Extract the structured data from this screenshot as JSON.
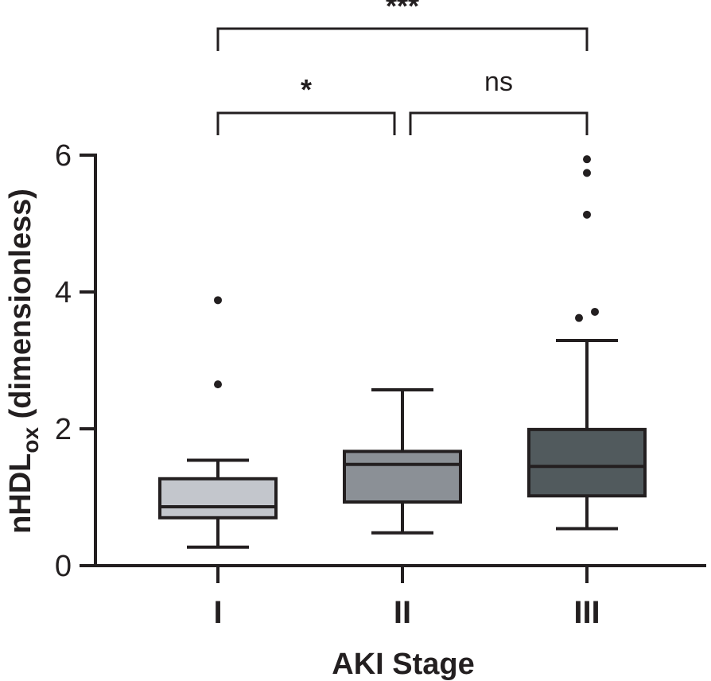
{
  "chart_data": {
    "type": "box",
    "title": "",
    "xlabel": "AKI Stage",
    "ylabel": {
      "main": "nHDL",
      "subscript": "ox",
      "suffix": " (dimensionless)"
    },
    "ylim": [
      0,
      6
    ],
    "yticks": [
      0,
      2,
      4,
      6
    ],
    "yticks_text": [
      "0",
      "2",
      "4",
      "6"
    ],
    "categories": [
      "I",
      "II",
      "III"
    ],
    "boxes": [
      {
        "name": "I",
        "whisker_low": 0.27,
        "q1": 0.7,
        "median": 0.86,
        "q3": 1.27,
        "whisker_high": 1.54,
        "outliers": [
          2.65,
          3.88
        ],
        "color": "#c3c6cc"
      },
      {
        "name": "II",
        "whisker_low": 0.48,
        "q1": 0.93,
        "median": 1.48,
        "q3": 1.67,
        "whisker_high": 2.57,
        "outliers": [],
        "color": "#8b9096"
      },
      {
        "name": "III",
        "whisker_low": 0.54,
        "q1": 1.02,
        "median": 1.45,
        "q3": 1.99,
        "whisker_high": 3.29,
        "outliers": [
          3.62,
          3.71,
          5.13,
          5.74,
          5.94
        ],
        "color": "#515a5d"
      }
    ],
    "significance": [
      {
        "from": "I",
        "to": "II",
        "label": "*"
      },
      {
        "from": "II",
        "to": "III",
        "label": "ns"
      },
      {
        "from": "I",
        "to": "III",
        "label": "***"
      }
    ]
  }
}
